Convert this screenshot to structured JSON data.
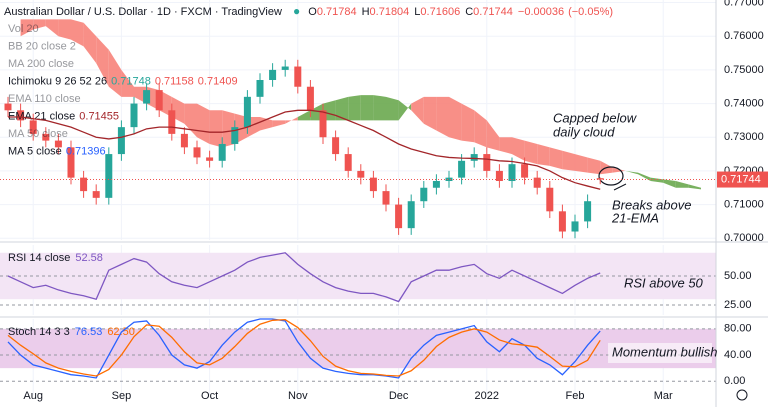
{
  "header": {
    "title": "Australian Dollar / U.S. Dollar · 1D · FXCM · TradingView",
    "ohlc_letters": [
      "O",
      "H",
      "L",
      "C"
    ],
    "ohlc": [
      0.71784,
      0.71804,
      0.71606,
      0.71744
    ],
    "change": {
      "value": -0.00036,
      "label": "−0.00036"
    },
    "change_pct": {
      "value": -0.05,
      "label": "(−0.05%)"
    }
  },
  "annotations": [
    {
      "lines": [
        "Capped below",
        "daily cloud"
      ]
    },
    {
      "lines": [
        "Breaks above",
        "21-EMA"
      ]
    },
    {
      "lines": [
        "RSI above 50"
      ]
    },
    {
      "lines": [
        "Momentum bullish"
      ]
    }
  ],
  "chart_data": [
    {
      "type": "candlestick",
      "categories": [
        null,
        null,
        "Aug",
        null,
        null,
        null,
        null,
        null,
        null,
        "Sep",
        null,
        null,
        null,
        null,
        null,
        null,
        "Oct",
        null,
        null,
        null,
        null,
        null,
        null,
        "Nov",
        null,
        null,
        null,
        null,
        null,
        null,
        null,
        "Dec",
        null,
        null,
        null,
        null,
        null,
        null,
        "2022",
        null,
        null,
        null,
        null,
        null,
        null,
        "Feb",
        null,
        null,
        null,
        null,
        null,
        null,
        "Mar",
        null,
        null,
        null
      ],
      "open": [
        0.74,
        0.738,
        0.735,
        0.731,
        0.729,
        0.727,
        0.718,
        0.714,
        0.712,
        0.725,
        0.733,
        0.74,
        0.744,
        0.738,
        0.731,
        0.727,
        0.724,
        0.723,
        0.728,
        0.733,
        0.742,
        0.747,
        0.75,
        0.751,
        0.745,
        0.738,
        0.73,
        0.725,
        0.72,
        0.718,
        0.714,
        0.71,
        0.703,
        0.711,
        0.715,
        0.717,
        0.718,
        0.723,
        0.725,
        0.72,
        0.717,
        0.722,
        0.718,
        0.715,
        0.708,
        0.702,
        0.705,
        0.71784,
        null,
        null,
        null,
        null,
        null,
        null,
        null,
        null
      ],
      "high": [
        0.742,
        0.74,
        0.737,
        0.733,
        0.731,
        0.729,
        0.72,
        0.716,
        0.727,
        0.735,
        0.742,
        0.746,
        0.746,
        0.74,
        0.733,
        0.729,
        0.726,
        0.73,
        0.735,
        0.744,
        0.749,
        0.752,
        0.753,
        0.753,
        0.747,
        0.74,
        0.732,
        0.727,
        0.722,
        0.72,
        0.716,
        0.712,
        0.713,
        0.717,
        0.719,
        0.72,
        0.725,
        0.727,
        0.727,
        0.722,
        0.724,
        0.724,
        0.72,
        0.717,
        0.71,
        0.707,
        0.713,
        0.71804,
        null,
        null,
        null,
        null,
        null,
        null,
        null,
        null
      ],
      "low": [
        0.736,
        0.733,
        0.729,
        0.727,
        0.725,
        0.716,
        0.712,
        0.71,
        0.71,
        0.723,
        0.731,
        0.738,
        0.736,
        0.729,
        0.725,
        0.722,
        0.721,
        0.721,
        0.726,
        0.731,
        0.74,
        0.745,
        0.748,
        0.743,
        0.736,
        0.728,
        0.723,
        0.718,
        0.716,
        0.712,
        0.708,
        0.701,
        0.701,
        0.709,
        0.713,
        0.715,
        0.716,
        0.721,
        0.718,
        0.715,
        0.715,
        0.716,
        0.713,
        0.706,
        0.7,
        0.7,
        0.703,
        0.71606,
        null,
        null,
        null,
        null,
        null,
        null,
        null,
        null
      ],
      "close": [
        0.738,
        0.735,
        0.731,
        0.729,
        0.727,
        0.718,
        0.714,
        0.712,
        0.725,
        0.733,
        0.74,
        0.744,
        0.738,
        0.731,
        0.727,
        0.724,
        0.723,
        0.728,
        0.733,
        0.742,
        0.747,
        0.75,
        0.751,
        0.745,
        0.738,
        0.73,
        0.725,
        0.72,
        0.718,
        0.714,
        0.71,
        0.703,
        0.711,
        0.715,
        0.717,
        0.718,
        0.723,
        0.725,
        0.72,
        0.717,
        0.722,
        0.718,
        0.715,
        0.708,
        0.702,
        0.705,
        0.711,
        0.71744,
        null,
        null,
        null,
        null,
        null,
        null,
        null,
        null
      ],
      "up_color": "#26a69a",
      "down_color": "#ef5350",
      "series": [
        {
          "color": "#a3262a",
          "values": [
            0.736,
            0.736,
            0.7355,
            0.735,
            0.734,
            0.733,
            0.7315,
            0.73,
            0.7295,
            0.73,
            0.731,
            0.7325,
            0.733,
            0.733,
            0.7325,
            0.732,
            0.7315,
            0.7315,
            0.732,
            0.733,
            0.7345,
            0.736,
            0.7375,
            0.738,
            0.738,
            0.7375,
            0.7365,
            0.735,
            0.7335,
            0.732,
            0.73,
            0.728,
            0.7265,
            0.7255,
            0.7245,
            0.724,
            0.7238,
            0.7237,
            0.7235,
            0.723,
            0.7228,
            0.7222,
            0.7215,
            0.72,
            0.718,
            0.7165,
            0.7155,
            0.71455,
            null,
            null,
            null,
            null,
            null,
            null,
            null,
            null
          ]
        }
      ],
      "ichimoku": {
        "bullish_color": "#6aa84f",
        "bearish_color": "#f7837a",
        "span_a": [
          null,
          0.76,
          0.762,
          0.763,
          0.76,
          0.759,
          0.757,
          0.752,
          0.745,
          0.742,
          0.742,
          0.74,
          0.738,
          0.736,
          0.734,
          0.73,
          0.728,
          0.727,
          0.728,
          0.73,
          0.732,
          0.733,
          0.734,
          0.736,
          0.738,
          0.74,
          0.741,
          0.742,
          0.7425,
          0.7425,
          0.742,
          0.741,
          0.738,
          0.734,
          0.732,
          0.73,
          0.729,
          0.7285,
          0.727,
          0.726,
          0.725,
          0.723,
          0.722,
          0.7215,
          0.7205,
          0.72,
          0.7195,
          0.719,
          0.7195,
          0.72,
          0.7195,
          0.718,
          0.7175,
          0.717,
          0.716,
          0.715
        ],
        "span_b": [
          null,
          0.765,
          0.765,
          0.765,
          0.765,
          0.765,
          0.764,
          0.76,
          0.756,
          0.75,
          0.745,
          0.745,
          0.744,
          0.742,
          0.74,
          0.74,
          0.738,
          0.738,
          0.737,
          0.736,
          0.736,
          0.735,
          0.735,
          0.735,
          0.735,
          0.735,
          0.735,
          0.735,
          0.735,
          0.735,
          0.735,
          0.735,
          0.74,
          0.742,
          0.742,
          0.742,
          0.74,
          0.738,
          0.735,
          0.73,
          0.73,
          0.729,
          0.728,
          0.727,
          0.726,
          0.725,
          0.724,
          0.723,
          0.721,
          0.72,
          0.719,
          0.717,
          0.7165,
          0.715,
          0.715,
          0.7145
        ]
      },
      "indicators": [
        {
          "name": "Vol 20",
          "visible": false
        },
        {
          "name": "BB 20 close 2",
          "visible": false
        },
        {
          "name": "MA 200 close",
          "visible": false
        },
        {
          "name": "Ichimoku 9 26 52 26",
          "values": [
            0.71748,
            0.71158,
            0.71409
          ],
          "value_colors": [
            "#26a69a",
            "#ef5350",
            "#ef5350"
          ]
        },
        {
          "name": "EMA 110 close",
          "visible": false
        },
        {
          "name": "EMA 21 close",
          "values": [
            0.71455
          ],
          "value_colors": [
            "#a3262a"
          ]
        },
        {
          "name": "MA 50 close",
          "visible": false
        },
        {
          "name": "MA 5 close",
          "values": [
            0.71396
          ],
          "value_colors": [
            "#2962ff"
          ]
        }
      ],
      "ylim": [
        0.69948,
        0.77076
      ],
      "yticks": [
        {
          "value": 0.7,
          "label": "0.70000"
        },
        {
          "value": 0.71,
          "label": "0.71000"
        },
        {
          "value": 0.72,
          "label": "0.72000"
        },
        {
          "value": 0.73,
          "label": "0.73000"
        },
        {
          "value": 0.74,
          "label": "0.74000"
        },
        {
          "value": 0.75,
          "label": "0.75000"
        },
        {
          "value": 0.76,
          "label": "0.76000"
        },
        {
          "value": 0.77,
          "label": "0.77000"
        }
      ]
    },
    {
      "type": "line",
      "name": "RSI 14 close",
      "legend_values": [
        52.58
      ],
      "legend_colors": [
        "#7e57c2"
      ],
      "band": [
        30,
        70
      ],
      "band_color": "#f3e5f5",
      "series": [
        {
          "color": "#7e57c2",
          "values": [
            50,
            45,
            40,
            42,
            38,
            35,
            33,
            30,
            55,
            60,
            65,
            62,
            52,
            45,
            42,
            40,
            45,
            50,
            55,
            62,
            66,
            68,
            70,
            60,
            52,
            45,
            40,
            37,
            35,
            35,
            32,
            28,
            45,
            50,
            55,
            55,
            58,
            60,
            52,
            48,
            55,
            50,
            45,
            40,
            35,
            42,
            48,
            52.58
          ]
        }
      ],
      "ylim": [
        16.4,
        76.7
      ],
      "yticks": [
        {
          "value": 25,
          "label": "25.00"
        },
        {
          "value": 50,
          "label": "50.00"
        }
      ]
    },
    {
      "type": "line",
      "name": "Stoch 14 3 3",
      "legend_values": [
        76.53,
        {
          "value": 62.5,
          "label": "62.50"
        }
      ],
      "legend_colors": [
        "#2962ff",
        "#ff6d00"
      ],
      "band": [
        20,
        80
      ],
      "band_color": "#ebcdeb",
      "series": [
        {
          "color": "#2962ff",
          "values": [
            60,
            40,
            25,
            20,
            15,
            10,
            8,
            5,
            40,
            75,
            90,
            92,
            70,
            40,
            25,
            20,
            30,
            55,
            75,
            90,
            95,
            95,
            92,
            60,
            35,
            20,
            15,
            12,
            10,
            10,
            8,
            5,
            35,
            55,
            70,
            75,
            80,
            85,
            60,
            45,
            65,
            55,
            35,
            25,
            10,
            30,
            55,
            76.53
          ]
        },
        {
          "color": "#ff6d00",
          "values": [
            70,
            55,
            42,
            28,
            20,
            15,
            11,
            8,
            18,
            40,
            68,
            86,
            84,
            67,
            45,
            28,
            25,
            35,
            53,
            73,
            87,
            93,
            94,
            82,
            62,
            38,
            23,
            16,
            12,
            11,
            9,
            8,
            16,
            32,
            53,
            67,
            75,
            80,
            75,
            63,
            57,
            55,
            52,
            38,
            23,
            22,
            32,
            62.5
          ]
        }
      ],
      "ylim": [
        -21,
        95
      ],
      "yticks": [
        {
          "value": 0,
          "label": "0.00"
        },
        {
          "value": 40,
          "label": "40.00"
        },
        {
          "value": 80,
          "label": "80.00"
        }
      ]
    }
  ]
}
